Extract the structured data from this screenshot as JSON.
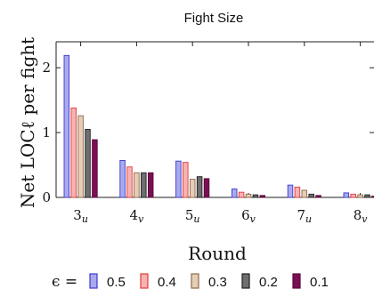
{
  "chart_data": {
    "type": "bar",
    "title": "Fight Size",
    "xlabel": "Round",
    "ylabel": "Net LOCℓ per fight",
    "categories": [
      {
        "base": "3",
        "sub": "u"
      },
      {
        "base": "4",
        "sub": "v"
      },
      {
        "base": "5",
        "sub": "u"
      },
      {
        "base": "6",
        "sub": "v"
      },
      {
        "base": "7",
        "sub": "u"
      },
      {
        "base": "8",
        "sub": "v"
      }
    ],
    "yticks": [
      "0",
      "1",
      "2"
    ],
    "ylim": [
      0,
      2.4
    ],
    "grid": false,
    "legend_position": "bottom",
    "legend_title": "ϵ =",
    "series": [
      {
        "name": "0.5",
        "fill": "#a9a9ee",
        "stroke": "#3b3bd0",
        "values": [
          2.19,
          0.57,
          0.56,
          0.13,
          0.19,
          0.07
        ]
      },
      {
        "name": "0.4",
        "fill": "#f6b3b3",
        "stroke": "#e33b3b",
        "values": [
          1.38,
          0.47,
          0.54,
          0.08,
          0.16,
          0.05
        ]
      },
      {
        "name": "0.3",
        "fill": "#e6cdb6",
        "stroke": "#8c6a4d",
        "values": [
          1.26,
          0.38,
          0.28,
          0.05,
          0.11,
          0.04
        ]
      },
      {
        "name": "0.2",
        "fill": "#6e6e6e",
        "stroke": "#202020",
        "values": [
          1.05,
          0.38,
          0.32,
          0.04,
          0.05,
          0.04
        ]
      },
      {
        "name": "0.1",
        "fill": "#7a0f54",
        "stroke": "#5a073c",
        "values": [
          0.89,
          0.38,
          0.29,
          0.03,
          0.03,
          0.02
        ]
      }
    ]
  }
}
